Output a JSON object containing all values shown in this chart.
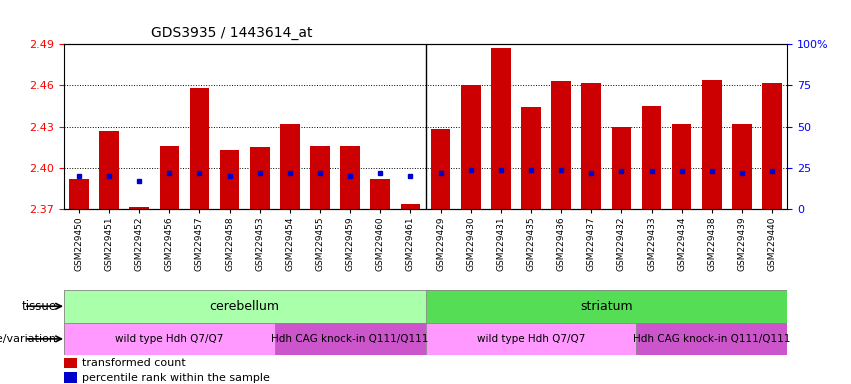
{
  "title": "GDS3935 / 1443614_at",
  "samples": [
    "GSM229450",
    "GSM229451",
    "GSM229452",
    "GSM229456",
    "GSM229457",
    "GSM229458",
    "GSM229453",
    "GSM229454",
    "GSM229455",
    "GSM229459",
    "GSM229460",
    "GSM229461",
    "GSM229429",
    "GSM229430",
    "GSM229431",
    "GSM229435",
    "GSM229436",
    "GSM229437",
    "GSM229432",
    "GSM229433",
    "GSM229434",
    "GSM229438",
    "GSM229439",
    "GSM229440"
  ],
  "bar_values": [
    2.392,
    2.427,
    2.372,
    2.416,
    2.458,
    2.413,
    2.415,
    2.432,
    2.416,
    2.416,
    2.392,
    2.374,
    2.428,
    2.46,
    2.487,
    2.444,
    2.463,
    2.462,
    2.43,
    2.445,
    2.432,
    2.464,
    2.432,
    2.462
  ],
  "percentile_values": [
    20,
    20,
    17,
    22,
    22,
    20,
    22,
    22,
    22,
    20,
    22,
    20,
    22,
    24,
    24,
    24,
    24,
    22,
    23,
    23,
    23,
    23,
    22,
    23
  ],
  "ymin": 2.37,
  "ymax": 2.49,
  "yticks": [
    2.37,
    2.4,
    2.43,
    2.46,
    2.49
  ],
  "grid_lines": [
    2.4,
    2.43,
    2.46
  ],
  "right_yticks": [
    0,
    25,
    50,
    75,
    100
  ],
  "bar_color": "#cc0000",
  "blue_color": "#0000cc",
  "separator_col": 11,
  "tissue_cereb_cols": [
    0,
    12
  ],
  "tissue_stri_cols": [
    12,
    24
  ],
  "geno_wt1_cols": [
    0,
    7
  ],
  "geno_cag1_cols": [
    7,
    12
  ],
  "geno_wt2_cols": [
    12,
    19
  ],
  "geno_cag2_cols": [
    19,
    24
  ],
  "tissue_cerebellum_color": "#aaffaa",
  "tissue_striatum_color": "#55dd55",
  "genotype_wt_color": "#ff99ff",
  "genotype_cag_color": "#cc55cc"
}
